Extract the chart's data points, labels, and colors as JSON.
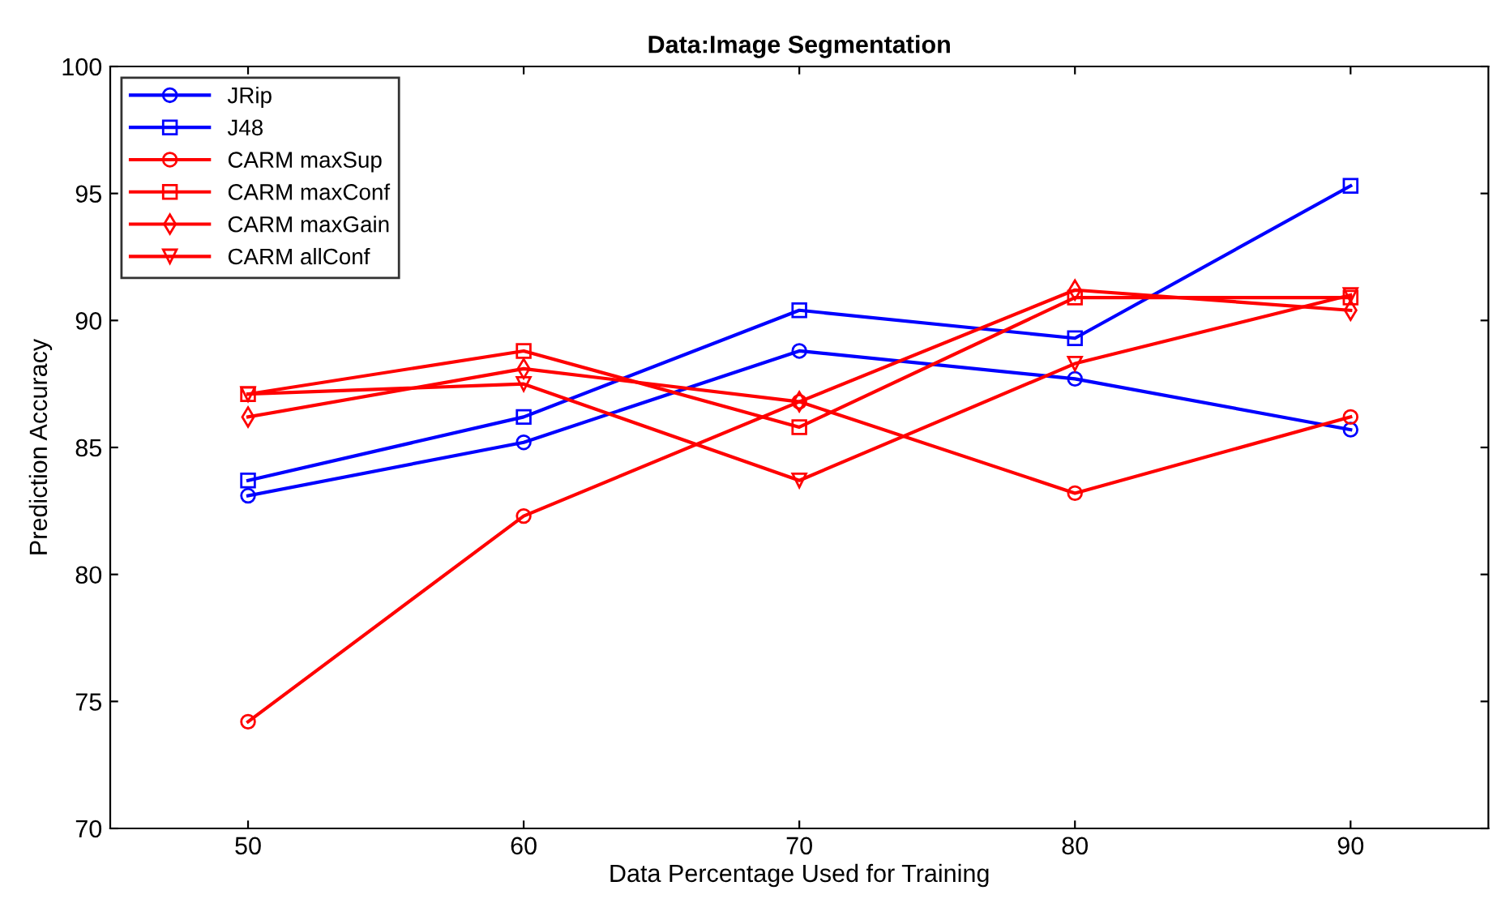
{
  "chart_data": {
    "type": "line",
    "title": "Data:Image Segmentation",
    "xlabel": "Data Percentage Used for Training",
    "ylabel": "Prediction Accuracy",
    "x": [
      50,
      60,
      70,
      80,
      90
    ],
    "xlim": [
      45,
      95
    ],
    "xticks": [
      50,
      60,
      70,
      80,
      90
    ],
    "ylim": [
      70,
      100
    ],
    "yticks": [
      70,
      75,
      80,
      85,
      90,
      95,
      100
    ],
    "grid": false,
    "legend": "top left",
    "line_style": "solid",
    "series": [
      {
        "name": "JRip",
        "color": "#0000ff",
        "marker": "circle",
        "values": [
          83.1,
          85.2,
          88.8,
          87.7,
          85.7
        ]
      },
      {
        "name": "J48",
        "color": "#0000ff",
        "marker": "square",
        "values": [
          83.7,
          86.2,
          90.4,
          89.3,
          95.3
        ]
      },
      {
        "name": "CARM maxSup",
        "color": "#ff0000",
        "marker": "circle",
        "values": [
          74.2,
          82.3,
          86.8,
          83.2,
          86.2
        ]
      },
      {
        "name": "CARM maxConf",
        "color": "#ff0000",
        "marker": "square",
        "values": [
          87.1,
          88.8,
          85.8,
          90.9,
          90.9
        ]
      },
      {
        "name": "CARM maxGain",
        "color": "#ff0000",
        "marker": "diamond",
        "values": [
          86.2,
          88.1,
          86.8,
          91.2,
          90.4
        ]
      },
      {
        "name": "CARM allConf",
        "color": "#ff0000",
        "marker": "triangle",
        "values": [
          87.1,
          87.5,
          83.7,
          88.3,
          91.0
        ]
      }
    ]
  }
}
